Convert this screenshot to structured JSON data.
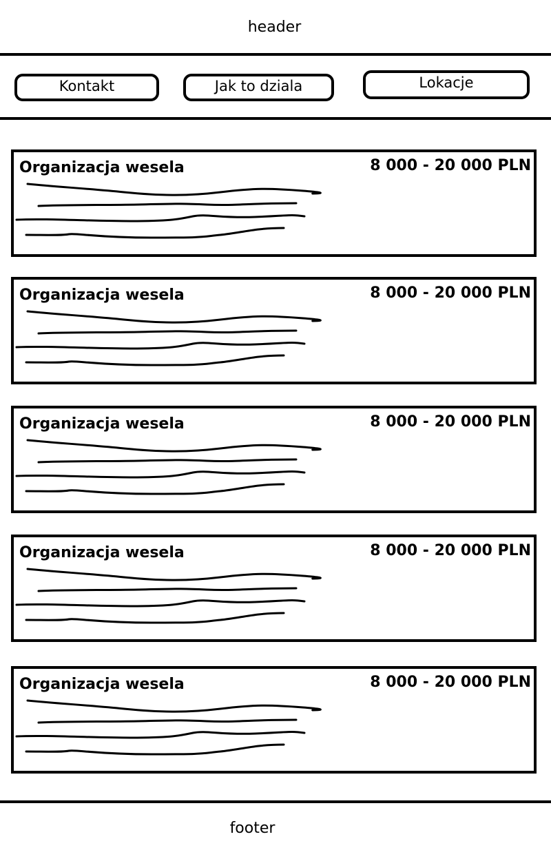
{
  "header": {
    "label": "header"
  },
  "nav": {
    "items": [
      {
        "label": "Kontakt"
      },
      {
        "label": "Jak to dziala"
      },
      {
        "label": "Lokacje"
      }
    ]
  },
  "cards": [
    {
      "title": "Organizacja wesela",
      "price": "8 000 - 20 000 PLN"
    },
    {
      "title": "Organizacja wesela",
      "price": "8 000 - 20 000 PLN"
    },
    {
      "title": "Organizacja wesela",
      "price": "8 000 - 20 000 PLN"
    },
    {
      "title": "Organizacja wesela",
      "price": "8 000 - 20 000 PLN"
    },
    {
      "title": "Organizacja wesela",
      "price": "8 000 - 20 000 PLN"
    }
  ],
  "footer": {
    "label": "footer"
  }
}
